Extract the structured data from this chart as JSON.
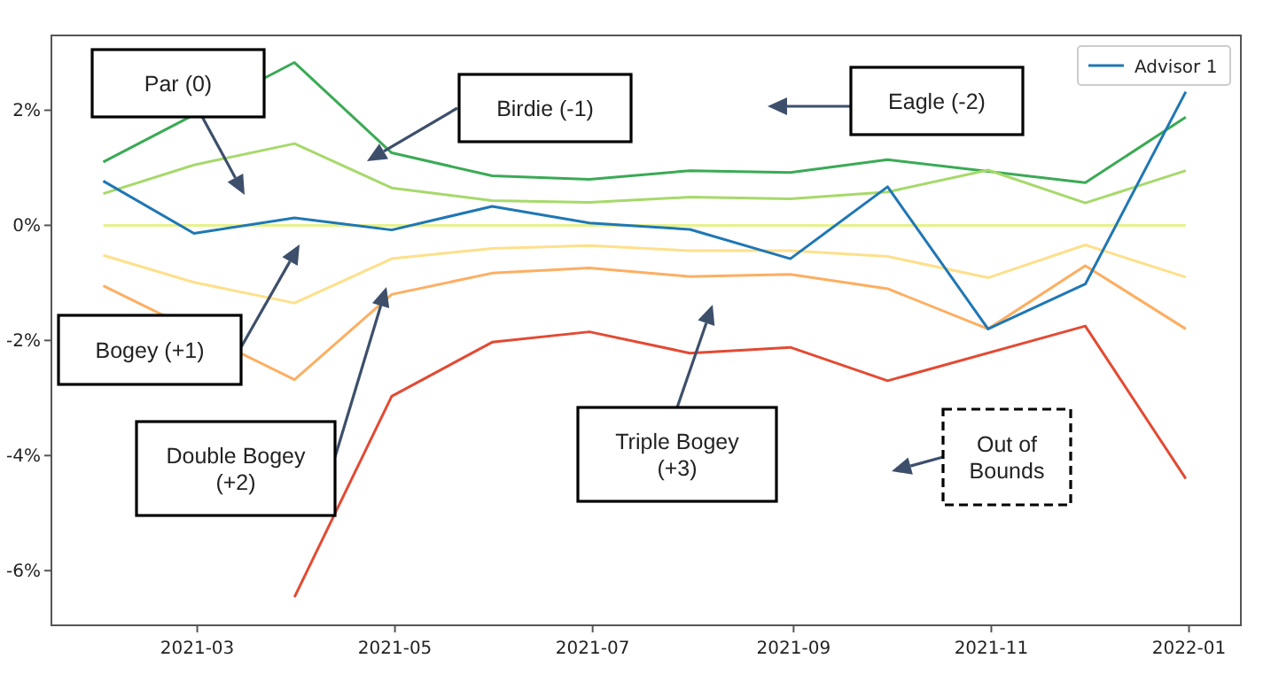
{
  "chart_data": {
    "type": "line",
    "x": [
      "2021-01-31",
      "2021-02-28",
      "2021-03-31",
      "2021-04-30",
      "2021-05-31",
      "2021-06-30",
      "2021-07-31",
      "2021-08-31",
      "2021-09-30",
      "2021-10-31",
      "2021-11-30",
      "2021-12-31"
    ],
    "xlim": [
      "2021-01-15",
      "2022-01-17"
    ],
    "xticks": [
      {
        "value": "2021-03-01",
        "label": "2021-03"
      },
      {
        "value": "2021-05-01",
        "label": "2021-05"
      },
      {
        "value": "2021-07-01",
        "label": "2021-07"
      },
      {
        "value": "2021-09-01",
        "label": "2021-09"
      },
      {
        "value": "2021-11-01",
        "label": "2021-11"
      },
      {
        "value": "2022-01-01",
        "label": "2022-01"
      }
    ],
    "ylim": [
      -6.95,
      3.3
    ],
    "yticks": [
      {
        "value": -6,
        "label": "-6%"
      },
      {
        "value": -4,
        "label": "-4%"
      },
      {
        "value": -2,
        "label": "-2%"
      },
      {
        "value": 0,
        "label": "0%"
      },
      {
        "value": 2,
        "label": "2%"
      }
    ],
    "series": [
      {
        "color": "#3aaa55",
        "values": [
          1.1,
          null,
          2.83,
          1.26,
          0.86,
          0.8,
          0.95,
          0.92,
          1.14,
          null,
          0.74,
          1.88
        ]
      },
      {
        "color": "#a6d96a",
        "values": [
          0.55,
          1.05,
          1.42,
          0.65,
          0.43,
          0.4,
          0.49,
          0.46,
          0.58,
          0.96,
          0.39,
          0.95
        ]
      },
      {
        "color": "#e6f28c",
        "values": [
          0,
          0,
          0,
          0,
          0,
          0,
          0,
          0,
          0,
          0,
          0,
          0
        ]
      },
      {
        "color": "#fee08b",
        "values": [
          -0.52,
          -0.99,
          -1.35,
          -0.58,
          -0.4,
          -0.35,
          -0.44,
          -0.44,
          -0.54,
          -0.91,
          -0.34,
          -0.9
        ]
      },
      {
        "color": "#fdae61",
        "values": [
          -1.05,
          null,
          -2.68,
          -1.2,
          -0.83,
          -0.74,
          -0.89,
          -0.85,
          -1.1,
          -1.8,
          -0.7,
          -1.8
        ]
      },
      {
        "color": "#e34a33",
        "values": [
          null,
          null,
          -6.46,
          -2.97,
          -2.03,
          -1.85,
          -2.22,
          -2.12,
          -2.7,
          null,
          -1.75,
          -4.4
        ]
      },
      {
        "name": "Advisor 1",
        "color": "#1f77b4",
        "values": [
          0.77,
          -0.14,
          0.13,
          -0.08,
          0.33,
          0.04,
          -0.07,
          -0.58,
          0.67,
          -1.8,
          -1.02,
          2.32
        ]
      }
    ],
    "legend": "top right",
    "annotations": [
      "Par  (0)",
      "Birdie (-1)",
      "Eagle (-2)",
      "Bogey (+1)",
      "Double Bogey\n(+2)",
      "Triple Bogey\n(+3)",
      "Out of\nBounds"
    ]
  }
}
